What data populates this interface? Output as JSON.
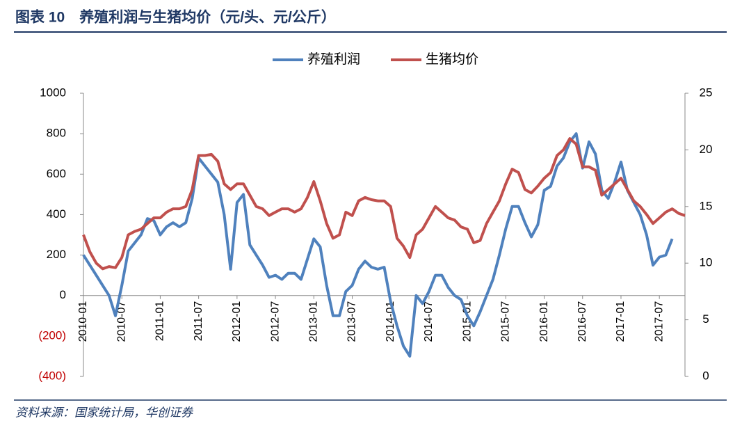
{
  "chart_data": {
    "type": "line",
    "title": "图表 10　养殖利润与生猪均价（元/头、元/公斤）",
    "source": "资料来源：国家统计局，华创证券",
    "categories": [
      "2010-01",
      null,
      null,
      null,
      null,
      null,
      "2010-07",
      null,
      null,
      null,
      null,
      null,
      "2011-01",
      null,
      null,
      null,
      null,
      null,
      "2011-07",
      null,
      null,
      null,
      null,
      null,
      "2012-01",
      null,
      null,
      null,
      null,
      null,
      "2012-07",
      null,
      null,
      null,
      null,
      null,
      "2013-01",
      null,
      null,
      null,
      null,
      null,
      "2013-07",
      null,
      null,
      null,
      null,
      null,
      "2014-01",
      null,
      null,
      null,
      null,
      null,
      "2014-07",
      null,
      null,
      null,
      null,
      null,
      "2015-01",
      null,
      null,
      null,
      null,
      null,
      "2015-07",
      null,
      null,
      null,
      null,
      null,
      "2016-01",
      null,
      null,
      null,
      null,
      null,
      "2016-07",
      null,
      null,
      null,
      null,
      null,
      "2017-01",
      null,
      null,
      null,
      null,
      null,
      "2017-07",
      null,
      null,
      null,
      null
    ],
    "series": [
      {
        "name": "养殖利润",
        "color": "#4f81bd",
        "axis": "y",
        "values": [
          200,
          150,
          100,
          50,
          0,
          -100,
          50,
          220,
          260,
          300,
          380,
          370,
          300,
          340,
          360,
          340,
          360,
          480,
          680,
          640,
          600,
          560,
          400,
          130,
          460,
          500,
          250,
          200,
          150,
          90,
          100,
          80,
          110,
          110,
          80,
          180,
          280,
          240,
          50,
          -100,
          -100,
          20,
          50,
          130,
          170,
          140,
          130,
          140,
          -30,
          -150,
          -250,
          -300,
          0,
          -40,
          20,
          100,
          100,
          40,
          0,
          -20,
          -100,
          -150,
          -80,
          0,
          80,
          200,
          330,
          440,
          440,
          360,
          290,
          350,
          520,
          540,
          640,
          680,
          760,
          800,
          630,
          760,
          700,
          520,
          480,
          560,
          660,
          520,
          460,
          400,
          300,
          150,
          190,
          200,
          280,
          null,
          null
        ]
      },
      {
        "name": "生猪均价",
        "color": "#c0504d",
        "axis": "y2",
        "values": [
          12.5,
          11,
          10,
          9.5,
          9.7,
          9.6,
          10.5,
          12.5,
          12.8,
          13,
          13.5,
          14,
          14,
          14.5,
          14.8,
          14.8,
          15,
          16.5,
          19.5,
          19.5,
          19.6,
          19,
          17,
          16.5,
          17,
          17,
          16,
          15,
          14.8,
          14.2,
          14.5,
          14.8,
          14.8,
          14.5,
          14.8,
          15.8,
          17.2,
          15.5,
          13.5,
          12.2,
          12.5,
          14.5,
          14.2,
          15.5,
          15.8,
          15.6,
          15.5,
          15.5,
          15,
          12.2,
          11.5,
          10.5,
          12.5,
          13,
          14,
          15,
          14.5,
          14,
          13.8,
          13.2,
          13,
          11.8,
          12,
          13.5,
          14.5,
          15.5,
          17,
          18.3,
          18,
          16.5,
          16.2,
          16.8,
          17.5,
          18,
          19.5,
          20,
          21,
          20.5,
          18.5,
          18.5,
          18.2,
          16,
          16.5,
          17,
          17.5,
          16.5,
          15.5,
          15,
          14.3,
          13.5,
          14,
          14.5,
          14.8,
          14.4,
          14.2
        ]
      }
    ],
    "ylim": [
      -400,
      1000
    ],
    "yticks": [
      {
        "value": -400,
        "label": "(400)"
      },
      {
        "value": -200,
        "label": "(200)"
      },
      0,
      200,
      400,
      600,
      800,
      1000
    ],
    "y2lim": [
      0,
      25
    ],
    "y2ticks": [
      0,
      5,
      10,
      15,
      20,
      25
    ],
    "legend": "top"
  }
}
